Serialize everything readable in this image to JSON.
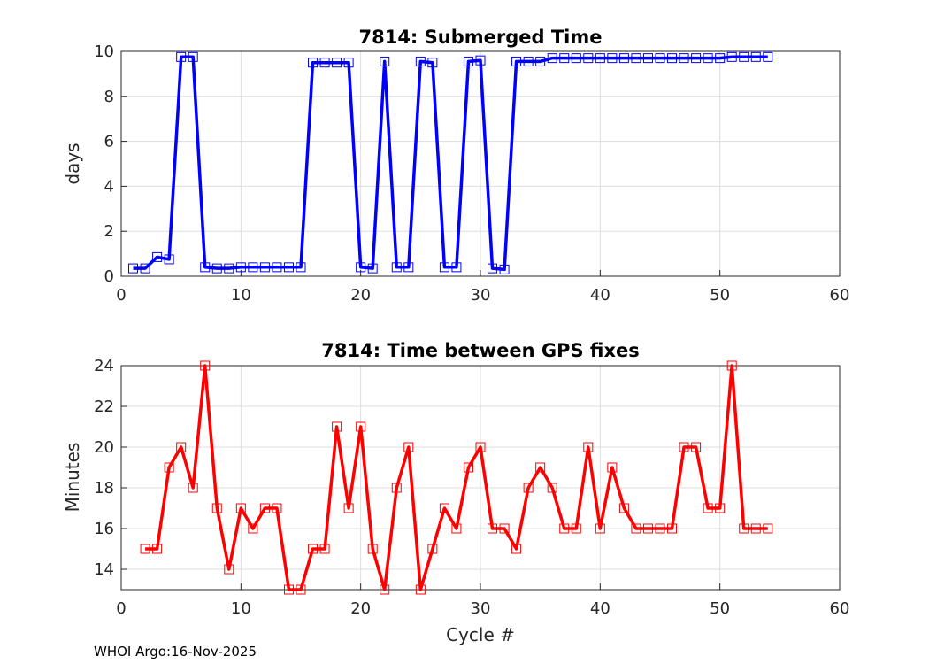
{
  "footer": "WHOI Argo:16-Nov-2025",
  "colors": {
    "top_series": "#0000ff",
    "bottom_series": "#ff0000",
    "grid": "#dddddd",
    "axis": "#262626"
  },
  "chart_data": [
    {
      "type": "line",
      "title": "7814: Submerged Time",
      "xlabel": "",
      "ylabel": "days",
      "xlim": [
        0,
        60
      ],
      "ylim": [
        0,
        10
      ],
      "xticks": [
        "0",
        "10",
        "20",
        "30",
        "40",
        "50",
        "60"
      ],
      "yticks": [
        "0",
        "2",
        "4",
        "6",
        "8",
        "10"
      ],
      "grid": true,
      "marker": "square",
      "x": [
        1,
        2,
        3,
        4,
        5,
        6,
        7,
        8,
        9,
        10,
        11,
        12,
        13,
        14,
        15,
        16,
        17,
        18,
        19,
        20,
        21,
        22,
        23,
        24,
        25,
        26,
        27,
        28,
        29,
        30,
        31,
        32,
        33,
        34,
        35,
        36,
        37,
        38,
        39,
        40,
        41,
        42,
        43,
        44,
        45,
        46,
        47,
        48,
        49,
        50,
        51,
        52,
        53,
        54
      ],
      "y": [
        0.35,
        0.35,
        0.85,
        0.75,
        9.75,
        9.75,
        0.4,
        0.35,
        0.35,
        0.4,
        0.4,
        0.4,
        0.4,
        0.4,
        0.4,
        9.5,
        9.5,
        9.5,
        9.5,
        0.4,
        0.35,
        9.55,
        0.4,
        0.4,
        9.55,
        9.5,
        0.4,
        0.4,
        9.55,
        9.6,
        0.35,
        0.3,
        9.55,
        9.55,
        9.55,
        9.7,
        9.7,
        9.7,
        9.7,
        9.7,
        9.7,
        9.7,
        9.7,
        9.7,
        9.7,
        9.7,
        9.7,
        9.7,
        9.7,
        9.7,
        9.75,
        9.75,
        9.75,
        9.75
      ]
    },
    {
      "type": "line",
      "title": "7814: Time between GPS fixes",
      "xlabel": "Cycle #",
      "ylabel": "Minutes",
      "xlim": [
        0,
        60
      ],
      "ylim": [
        13,
        24
      ],
      "xticks": [
        "0",
        "10",
        "20",
        "30",
        "40",
        "50",
        "60"
      ],
      "yticks": [
        "14",
        "16",
        "18",
        "20",
        "22",
        "24"
      ],
      "grid": true,
      "marker": "square",
      "x": [
        2,
        3,
        4,
        5,
        6,
        7,
        8,
        9,
        10,
        11,
        12,
        13,
        14,
        15,
        16,
        17,
        18,
        19,
        20,
        21,
        22,
        23,
        24,
        25,
        26,
        27,
        28,
        29,
        30,
        31,
        32,
        33,
        34,
        35,
        36,
        37,
        38,
        39,
        40,
        41,
        42,
        43,
        44,
        45,
        46,
        47,
        48,
        49,
        50,
        51,
        52,
        53,
        54
      ],
      "y": [
        15,
        15,
        19,
        20,
        18,
        24,
        17,
        14,
        17,
        16,
        17,
        17,
        13,
        13,
        15,
        15,
        21,
        17,
        21,
        15,
        13,
        18,
        20,
        13,
        15,
        17,
        16,
        19,
        20,
        16,
        16,
        15,
        18,
        19,
        18,
        16,
        16,
        20,
        16,
        19,
        17,
        16,
        16,
        16,
        16,
        20,
        20,
        17,
        17,
        24,
        16,
        16,
        16
      ]
    }
  ]
}
